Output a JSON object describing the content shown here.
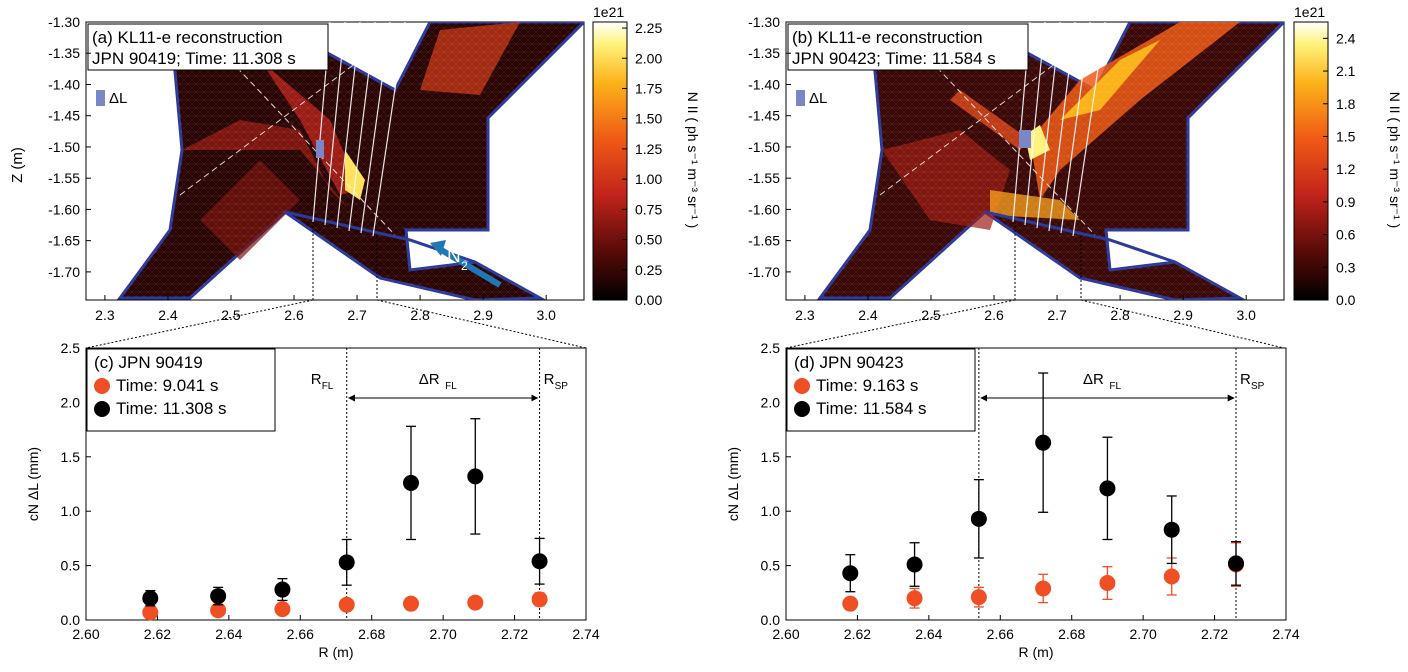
{
  "colors": {
    "outline": "#2b3a9c",
    "marker_early": "#f04e23",
    "marker_late": "#000000",
    "dL_box": "#7b86c8",
    "arrow": "#1f77b4"
  },
  "panels_top": [
    {
      "title": "(a) KL11-e reconstruction",
      "subtitle": "JPN 90419; Time: 11.308 s",
      "dL_label": "ΔL",
      "colorbar": {
        "exponent": "1e21",
        "label": "N II  ( ph s⁻¹ m⁻³ sr⁻¹ )",
        "ticks": [
          "0.00",
          "0.25",
          "0.50",
          "0.75",
          "1.00",
          "1.25",
          "1.50",
          "1.75",
          "2.00",
          "2.25"
        ],
        "max": 2.3
      },
      "y_ticks": [
        "-1.30",
        "-1.35",
        "-1.40",
        "-1.45",
        "-1.50",
        "-1.55",
        "-1.60",
        "-1.65",
        "-1.70"
      ],
      "x_ticks": [
        "2.3",
        "2.4",
        "2.5",
        "2.6",
        "2.7",
        "2.8",
        "2.9",
        "3.0"
      ],
      "ylabel": "Z (m)",
      "n2_label": "N",
      "n2_sub": "2"
    },
    {
      "title": "(b) KL11-e reconstruction",
      "subtitle": "JPN 90423; Time: 11.584 s",
      "dL_label": "ΔL",
      "colorbar": {
        "exponent": "1e21",
        "label": "N II  ( ph s⁻¹ m⁻³ sr⁻¹ )",
        "ticks": [
          "0.0",
          "0.3",
          "0.6",
          "0.9",
          "1.2",
          "1.5",
          "1.8",
          "2.1",
          "2.4"
        ],
        "max": 2.55
      },
      "y_ticks": [
        "-1.30",
        "-1.35",
        "-1.40",
        "-1.45",
        "-1.50",
        "-1.55",
        "-1.60",
        "-1.65",
        "-1.70"
      ],
      "x_ticks": [
        "2.3",
        "2.4",
        "2.5",
        "2.6",
        "2.7",
        "2.8",
        "2.9",
        "3.0"
      ]
    }
  ],
  "chart_data": [
    {
      "type": "scatter",
      "title": "(c) JPN 90419",
      "xlabel": "R (m)",
      "ylabel": "cN ΔL (mm)",
      "xlim": [
        2.6,
        2.74
      ],
      "ylim": [
        0,
        2.5
      ],
      "x_ticks": [
        "2.60",
        "2.62",
        "2.64",
        "2.66",
        "2.68",
        "2.70",
        "2.72",
        "2.74"
      ],
      "y_ticks": [
        "0.0",
        "0.5",
        "1.0",
        "1.5",
        "2.0",
        "2.5"
      ],
      "R_FL": 2.673,
      "R_SP": 2.727,
      "R_FL_label": "R",
      "R_FL_sub": "FL",
      "R_SP_label": "R",
      "R_SP_sub": "SP",
      "dR_label": "ΔR",
      "dR_sub": "FL",
      "series": [
        {
          "name": "Time: 9.041 s",
          "color": "#f04e23",
          "x": [
            2.618,
            2.637,
            2.655,
            2.673,
            2.691,
            2.709,
            2.727
          ],
          "y": [
            0.07,
            0.09,
            0.1,
            0.14,
            0.15,
            0.16,
            0.19
          ],
          "err": [
            0.03,
            0.03,
            0.03,
            0.05,
            0.05,
            0.05,
            0.06
          ]
        },
        {
          "name": "Time: 11.308 s",
          "color": "#000000",
          "x": [
            2.618,
            2.637,
            2.655,
            2.673,
            2.691,
            2.709,
            2.727
          ],
          "y": [
            0.2,
            0.22,
            0.28,
            0.53,
            1.26,
            1.32,
            0.54
          ],
          "err": [
            0.07,
            0.08,
            0.1,
            0.21,
            0.52,
            0.53,
            0.21
          ]
        }
      ]
    },
    {
      "type": "scatter",
      "title": "(d) JPN 90423",
      "xlabel": "R (m)",
      "ylabel": "cN ΔL (mm)",
      "xlim": [
        2.6,
        2.74
      ],
      "ylim": [
        0,
        2.5
      ],
      "x_ticks": [
        "2.60",
        "2.62",
        "2.64",
        "2.66",
        "2.68",
        "2.70",
        "2.72",
        "2.74"
      ],
      "y_ticks": [
        "0.0",
        "0.5",
        "1.0",
        "1.5",
        "2.0",
        "2.5"
      ],
      "R_FL": 2.654,
      "R_SP": 2.726,
      "R_FL_label": "R",
      "R_FL_sub": "FL",
      "R_SP_label": "R",
      "R_SP_sub": "SP",
      "dR_label": "ΔR",
      "dR_sub": "FL",
      "series": [
        {
          "name": "Time: 9.163 s",
          "color": "#f04e23",
          "x": [
            2.618,
            2.636,
            2.654,
            2.672,
            2.69,
            2.708,
            2.726
          ],
          "y": [
            0.15,
            0.2,
            0.21,
            0.29,
            0.34,
            0.4,
            0.51
          ],
          "err": [
            0.05,
            0.09,
            0.09,
            0.13,
            0.15,
            0.17,
            0.2
          ]
        },
        {
          "name": "Time: 11.584 s",
          "color": "#000000",
          "x": [
            2.618,
            2.636,
            2.654,
            2.672,
            2.69,
            2.708,
            2.726
          ],
          "y": [
            0.43,
            0.51,
            0.93,
            1.63,
            1.21,
            0.83,
            0.52
          ],
          "err": [
            0.17,
            0.2,
            0.36,
            0.64,
            0.47,
            0.31,
            0.2
          ]
        }
      ]
    }
  ]
}
